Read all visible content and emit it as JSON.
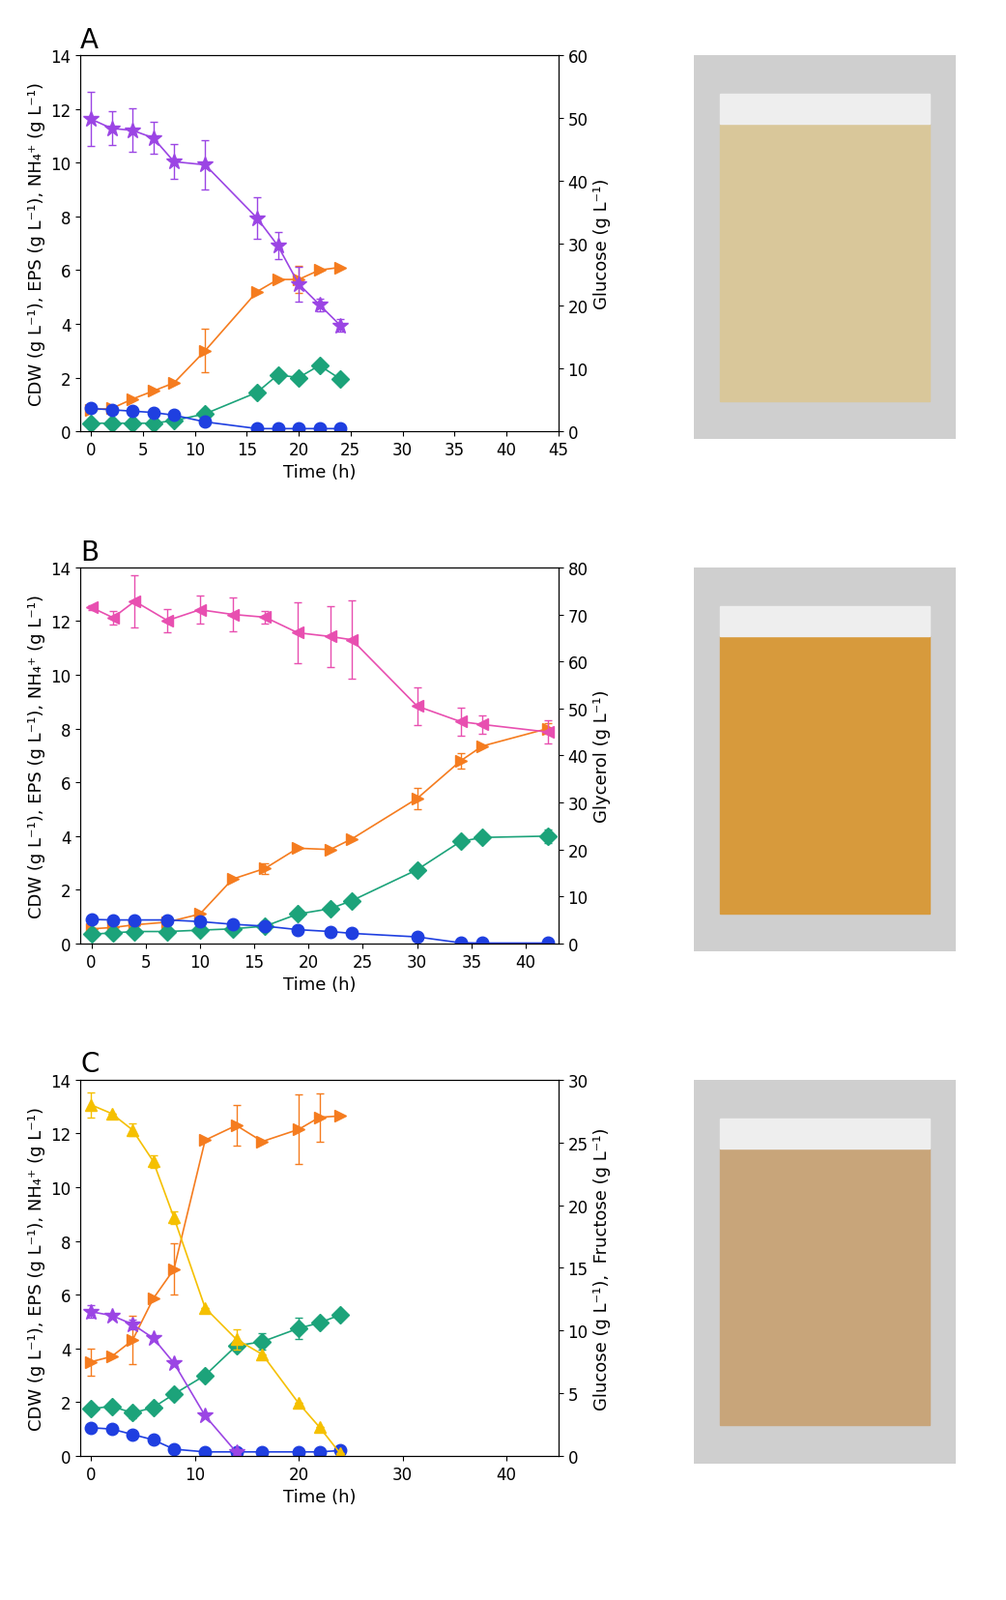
{
  "chart_data": [
    {
      "type": "line",
      "title": "A",
      "xlabel": "Time (h)",
      "ylabel": "CDW (g L⁻¹), EPS (g L⁻¹), NH₄⁺ (g L⁻¹)",
      "y2label": "Glucose (g L⁻¹)",
      "x": [
        0,
        2,
        4,
        6,
        8,
        11,
        16,
        18,
        20,
        22,
        24
      ],
      "xlim": [
        -1,
        45
      ],
      "xticks": [
        0,
        5,
        10,
        15,
        20,
        25,
        30,
        35,
        40,
        45
      ],
      "ylim": [
        0,
        14
      ],
      "yticks": [
        0,
        2,
        4,
        6,
        8,
        10,
        12,
        14
      ],
      "y2lim": [
        0,
        60
      ],
      "y2ticks": [
        0,
        10,
        20,
        30,
        40,
        50,
        60
      ],
      "series": [
        {
          "color": "#f57c1f",
          "marker": ">",
          "values": [
            0.8,
            0.85,
            1.2,
            1.5,
            1.8,
            3.0,
            5.2,
            5.65,
            5.65,
            6.0,
            6.1
          ],
          "errors": [
            0,
            0,
            0,
            0,
            0,
            0.8,
            0,
            0,
            0.5,
            0,
            0
          ]
        },
        {
          "color": "#1ca37a",
          "marker": "D",
          "values": [
            0.3,
            0.3,
            0.3,
            0.3,
            0.4,
            0.65,
            1.45,
            2.1,
            2.0,
            2.45,
            1.95
          ],
          "errors": [
            0,
            0,
            0,
            0,
            0,
            0,
            0,
            0,
            0,
            0,
            0
          ]
        },
        {
          "color": "#1f3fe0",
          "marker": "o",
          "values": [
            0.85,
            0.8,
            0.75,
            0.7,
            0.6,
            0.35,
            0.1,
            0.1,
            0.1,
            0.1,
            0.1
          ],
          "errors": [
            0,
            0,
            0,
            0,
            0,
            0,
            0,
            0,
            0,
            0,
            0
          ]
        },
        {
          "color": "#9b45e4",
          "marker": "*",
          "axis": "y2",
          "values": [
            49.8,
            48.3,
            48.0,
            46.8,
            43.0,
            42.5,
            34.0,
            29.6,
            23.5,
            20.2,
            16.9
          ],
          "errors": [
            4.3,
            2.7,
            3.5,
            2.5,
            2.8,
            3.9,
            3.3,
            2.2,
            2.8,
            1.0,
            1.0
          ]
        }
      ]
    },
    {
      "type": "line",
      "title": "B",
      "xlabel": "Time (h)",
      "ylabel": "CDW (g L⁻¹), EPS (g L⁻¹), NH₄⁺ (g L⁻¹)",
      "y2label": "Glycerol (g L⁻¹)",
      "x": [
        0,
        2,
        4,
        7,
        10,
        13,
        16,
        19,
        22,
        24,
        30,
        34,
        36,
        42
      ],
      "xlim": [
        -1,
        43
      ],
      "xticks": [
        0,
        5,
        10,
        15,
        20,
        25,
        30,
        35,
        40
      ],
      "ylim": [
        0,
        14
      ],
      "yticks": [
        0,
        2,
        4,
        6,
        8,
        10,
        12,
        14
      ],
      "y2lim": [
        0,
        80
      ],
      "y2ticks": [
        0,
        10,
        20,
        30,
        40,
        50,
        60,
        70,
        80
      ],
      "series": [
        {
          "color": "#f57c1f",
          "marker": ">",
          "values": [
            0.55,
            0.6,
            0.7,
            0.8,
            1.1,
            2.4,
            2.8,
            3.55,
            3.5,
            3.9,
            5.4,
            6.8,
            7.35,
            8.0
          ],
          "errors": [
            0,
            0,
            0,
            0,
            0,
            0,
            0.2,
            0,
            0,
            0,
            0.4,
            0.3,
            0,
            0.2
          ]
        },
        {
          "color": "#1ca37a",
          "marker": "D",
          "values": [
            0.35,
            0.4,
            0.45,
            0.45,
            0.5,
            0.55,
            0.65,
            1.1,
            1.3,
            1.6,
            2.75,
            3.8,
            3.95,
            4.0
          ],
          "errors": [
            0,
            0,
            0,
            0,
            0,
            0,
            0,
            0,
            0,
            0,
            0,
            0,
            0,
            0.25
          ]
        },
        {
          "color": "#1f3fe0",
          "marker": "o",
          "values": [
            0.9,
            0.88,
            0.88,
            0.88,
            0.82,
            0.72,
            0.65,
            0.52,
            0.45,
            0.38,
            0.25,
            0.03,
            0.02,
            0.02
          ],
          "errors": [
            0,
            0,
            0,
            0,
            0,
            0,
            0,
            0,
            0,
            0,
            0,
            0,
            0,
            0
          ]
        },
        {
          "color": "#e84fb0",
          "marker": "<",
          "axis": "y2",
          "values": [
            71.5,
            69.3,
            72.8,
            68.7,
            71.0,
            70.0,
            69.4,
            66.1,
            65.3,
            64.6,
            50.5,
            47.2,
            46.6,
            45.0
          ],
          "errors": [
            0.5,
            1.5,
            5.5,
            2.5,
            3.0,
            3.5,
            1.4,
            6.5,
            6.5,
            8.3,
            4.0,
            3.0,
            2.0,
            2.5
          ]
        }
      ]
    },
    {
      "type": "line",
      "title": "C",
      "xlabel": "Time (h)",
      "ylabel": "CDW (g L⁻¹), EPS (g L⁻¹), NH₄⁺ (g L⁻¹)",
      "y2label": "Glucose (g L⁻¹),  Fructose (g L⁻¹)",
      "x": [
        0,
        2,
        4,
        6,
        8,
        11,
        14,
        16.5,
        20,
        22,
        24
      ],
      "xlim": [
        -1,
        45
      ],
      "xticks": [
        0,
        10,
        20,
        30,
        40
      ],
      "ylim": [
        0,
        14
      ],
      "yticks": [
        0,
        2,
        4,
        6,
        8,
        10,
        12,
        14
      ],
      "y2lim": [
        0,
        30
      ],
      "y2ticks": [
        0,
        5,
        10,
        15,
        20,
        25,
        30
      ],
      "series": [
        {
          "color": "#f57c1f",
          "marker": ">",
          "values": [
            3.5,
            3.7,
            4.3,
            5.85,
            6.95,
            11.75,
            12.3,
            11.7,
            12.15,
            12.6,
            12.65
          ],
          "errors": [
            0.5,
            0,
            0.9,
            0,
            0.95,
            0,
            0.75,
            0,
            1.3,
            0.9,
            0
          ]
        },
        {
          "color": "#1ca37a",
          "marker": "D",
          "values": [
            1.75,
            1.85,
            1.6,
            1.8,
            2.3,
            3.0,
            4.1,
            4.25,
            4.75,
            4.95,
            5.25
          ],
          "errors": [
            0,
            0,
            0.2,
            0,
            0,
            0,
            0,
            0.3,
            0.4,
            0,
            0
          ]
        },
        {
          "color": "#1f3fe0",
          "marker": "o",
          "values": [
            1.05,
            1.0,
            0.8,
            0.6,
            0.25,
            0.15,
            0.15,
            0.15,
            0.15,
            0.15,
            0.2
          ],
          "errors": [
            0,
            0,
            0,
            0,
            0,
            0,
            0,
            0,
            0,
            0,
            0
          ]
        },
        {
          "color": "#9b45e4",
          "marker": "*",
          "axis": "y2",
          "values": [
            11.5,
            11.2,
            10.5,
            9.4,
            7.4,
            3.2,
            0.3,
            null,
            null,
            null,
            null
          ],
          "errors": [
            0.5,
            0,
            0.4,
            0,
            0,
            0,
            0,
            null,
            null,
            null,
            null
          ]
        },
        {
          "color": "#f5c000",
          "marker": "^",
          "axis": "y2",
          "values": [
            28.0,
            27.3,
            26.0,
            23.5,
            19.0,
            11.8,
            9.3,
            8.1,
            4.2,
            2.3,
            0.2
          ],
          "errors": [
            1.0,
            0,
            0.5,
            0.5,
            0.5,
            0,
            0.8,
            0,
            0,
            0,
            0
          ]
        }
      ]
    }
  ]
}
